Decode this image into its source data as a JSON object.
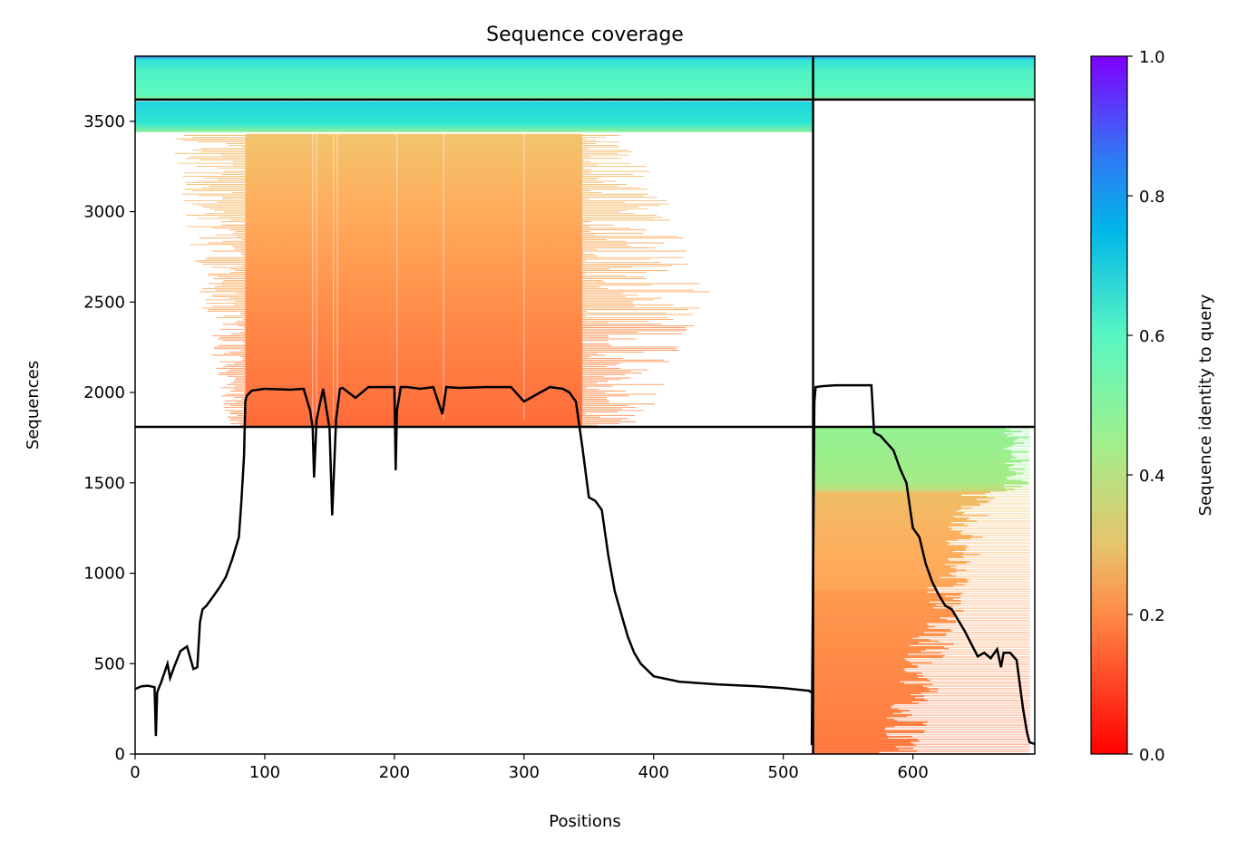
{
  "chart_data": {
    "type": "heatmap",
    "title": "Sequence coverage",
    "xlabel": "Positions",
    "ylabel": "Sequences",
    "xlim": [
      0,
      694
    ],
    "ylim": [
      0,
      3860
    ],
    "x_ticks": [
      0,
      100,
      200,
      300,
      400,
      500,
      600
    ],
    "y_ticks": [
      0,
      500,
      1000,
      1500,
      2000,
      2500,
      3000,
      3500
    ],
    "colorbar": {
      "label": "Sequence identity to query",
      "colormap": "rainbow_r",
      "range": [
        0,
        1
      ],
      "ticks": [
        "0.0",
        "0.2",
        "0.4",
        "0.6",
        "0.8",
        "1.0"
      ]
    },
    "divider_lines": {
      "vertical_x": 523,
      "horizontal_y": [
        1810,
        3620
      ]
    },
    "blocks": [
      {
        "name": "chain A paired",
        "x_range": [
          0,
          523
        ],
        "y_range": [
          3620,
          3860
        ],
        "identity": 0.55
      },
      {
        "name": "chain B paired",
        "x_range": [
          523,
          694
        ],
        "y_range": [
          3620,
          3860
        ],
        "identity": 0.55
      },
      {
        "name": "chain A unpaired high-identity",
        "x_range": [
          0,
          523
        ],
        "y_range": [
          3440,
          3610
        ],
        "identity": 0.65
      },
      {
        "name": "chain A unpaired",
        "x_range": [
          85,
          345
        ],
        "y_range": [
          1810,
          3430
        ],
        "identity_top": 0.3,
        "identity_bottom": 0.18
      },
      {
        "name": "chain B unpaired",
        "x_range": [
          523,
          690
        ],
        "y_range": [
          0,
          1810
        ],
        "identity_top": 0.45,
        "identity_bottom": 0.18
      }
    ],
    "coverage_line": {
      "x": [
        0,
        5,
        10,
        15,
        16,
        17,
        18,
        20,
        25,
        27,
        30,
        35,
        40,
        45,
        48,
        50,
        52,
        55,
        60,
        65,
        70,
        75,
        80,
        82,
        84,
        85,
        86,
        90,
        100,
        120,
        130,
        135,
        137,
        138,
        140,
        145,
        150,
        152,
        155,
        158,
        160,
        170,
        180,
        200,
        201,
        202,
        205,
        210,
        220,
        230,
        237,
        240,
        250,
        270,
        290,
        300,
        320,
        330,
        335,
        340,
        345,
        350,
        355,
        360,
        365,
        370,
        380,
        385,
        390,
        400,
        420,
        450,
        480,
        500,
        520,
        522
      ],
      "y": [
        360,
        375,
        378,
        370,
        100,
        340,
        360,
        395,
        500,
        420,
        480,
        570,
        595,
        470,
        480,
        730,
        800,
        820,
        870,
        920,
        980,
        1080,
        1200,
        1400,
        1650,
        1950,
        1980,
        2010,
        2020,
        2015,
        2020,
        1900,
        1800,
        1530,
        1850,
        2020,
        1800,
        1320,
        1850,
        2020,
        2025,
        1970,
        2030,
        2030,
        1570,
        1900,
        2030,
        2030,
        2020,
        2030,
        1880,
        2030,
        2025,
        2030,
        2030,
        1950,
        2030,
        2020,
        2000,
        1950,
        1700,
        1420,
        1400,
        1350,
        1100,
        900,
        650,
        560,
        500,
        430,
        400,
        385,
        375,
        365,
        350,
        340
      ]
    },
    "coverage_line_b": {
      "x": [
        522,
        524,
        525,
        530,
        540,
        560,
        568,
        570,
        572,
        575,
        580,
        585,
        590,
        595,
        600,
        605,
        610,
        615,
        620,
        625,
        630,
        640,
        650,
        655,
        660,
        665,
        668,
        670,
        675,
        680,
        685,
        688,
        690,
        694
      ],
      "y": [
        50,
        1950,
        2030,
        2035,
        2040,
        2040,
        2040,
        1780,
        1770,
        1760,
        1720,
        1680,
        1580,
        1500,
        1250,
        1200,
        1050,
        950,
        880,
        820,
        800,
        680,
        540,
        560,
        530,
        580,
        480,
        560,
        560,
        520,
        250,
        120,
        65,
        55
      ]
    }
  }
}
